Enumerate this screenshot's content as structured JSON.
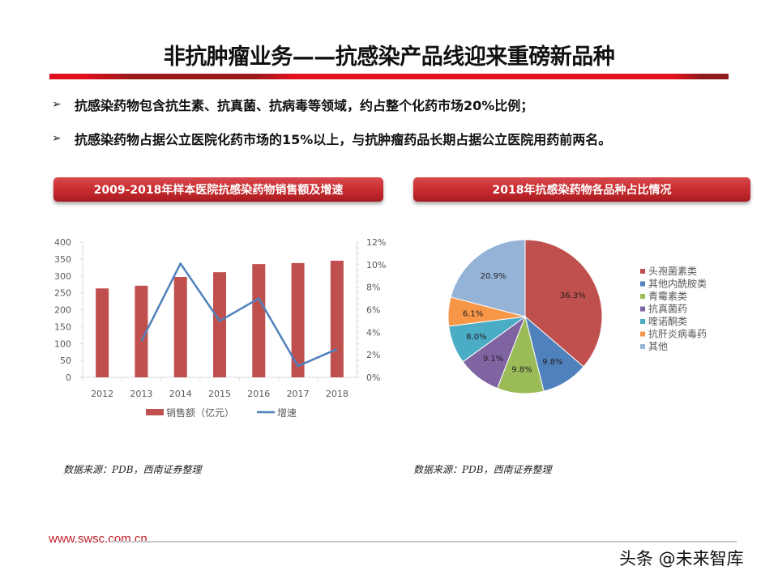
{
  "slide": {
    "title": "非抗肿瘤业务——抗感染产品线迎来重磅新品种",
    "bullets": [
      {
        "icon": "arrow-bullet-icon",
        "glyph": "➢",
        "text": "抗感染药物包含抗生素、抗真菌、抗病毒等领域，约占整个化药市场20%比例；"
      },
      {
        "icon": "arrow-bullet-icon",
        "glyph": "➢",
        "text": "抗感染药物占据公立医院化药市场的15%以上，与抗肿瘤药品长期占据公立医院用药前两名。"
      }
    ],
    "left_header": "2009-2018年样本医院抗感染药物销售额及增速",
    "right_header": "2018年抗感染药物各品种占比情况",
    "left_source": "数据来源：PDB，西南证券整理",
    "right_source": "数据来源：PDB，西南证券整理",
    "footer_url": "www.swsc.com.cn",
    "watermark": "头条 @未来智库",
    "colors": {
      "accent_red": "#e0101e",
      "bar_red": "#c0504d",
      "line_blue": "#4f81bd"
    }
  },
  "chart_data": [
    {
      "type": "bar+line",
      "title": "2009-2018年样本医院抗感染药物销售额及增速",
      "categories": [
        "2012",
        "2013",
        "2014",
        "2015",
        "2016",
        "2017",
        "2018"
      ],
      "series": [
        {
          "name": "销售额（亿元）",
          "type": "bar",
          "axis": "left",
          "color": "#c0504d",
          "values": [
            263,
            271,
            297,
            311,
            335,
            338,
            345
          ]
        },
        {
          "name": "增速",
          "type": "line",
          "axis": "right",
          "color": "#4f81bd",
          "values": [
            null,
            3.2,
            10.1,
            5.0,
            7.0,
            1.0,
            2.5
          ]
        }
      ],
      "y_left": {
        "ticks": [
          "0",
          "50",
          "100",
          "150",
          "200",
          "250",
          "300",
          "350",
          "400"
        ],
        "ylim": [
          0,
          400
        ]
      },
      "y_right": {
        "ticks": [
          "0%",
          "2%",
          "4%",
          "6%",
          "8%",
          "10%",
          "12%"
        ],
        "ylim": [
          0,
          12
        ]
      },
      "legend": [
        "销售额（亿元）",
        "增速"
      ],
      "legend_position": "bottom",
      "grid": false
    },
    {
      "type": "pie",
      "title": "2018年抗感染药物各品种占比情况",
      "slices": [
        {
          "label": "头孢菌素类",
          "value": 36.3,
          "text": "36.3%",
          "color": "#c0504d"
        },
        {
          "label": "其他内酰胺类",
          "value": 9.8,
          "text": "9.8%",
          "color": "#4f81bd"
        },
        {
          "label": "青霉素类",
          "value": 9.8,
          "text": "9.8%",
          "color": "#9bbb59"
        },
        {
          "label": "抗真菌药",
          "value": 9.1,
          "text": "9.1%",
          "color": "#8064a2"
        },
        {
          "label": "喹诺酮类",
          "value": 8.0,
          "text": "8.0%",
          "color": "#4bacc6"
        },
        {
          "label": "抗肝炎病毒药",
          "value": 6.1,
          "text": "6.1%",
          "color": "#f79646"
        },
        {
          "label": "其他",
          "value": 20.9,
          "text": "20.9%",
          "color": "#95b3d7"
        }
      ],
      "legend_position": "right"
    }
  ]
}
